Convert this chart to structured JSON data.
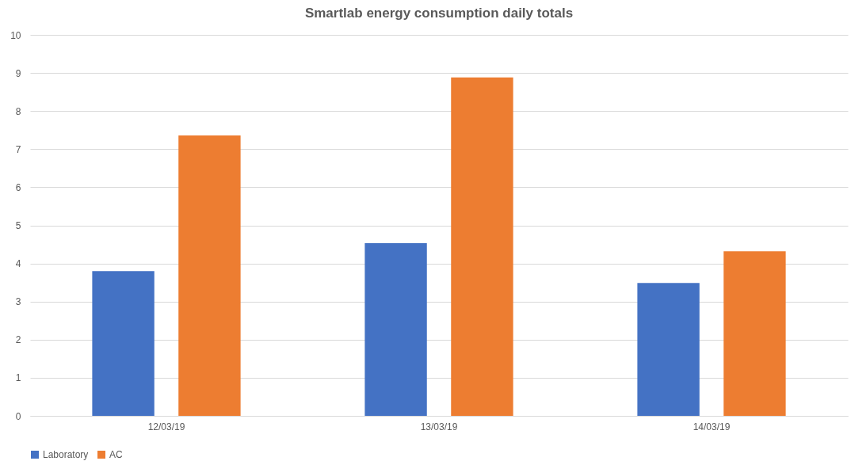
{
  "chart_data": {
    "type": "bar",
    "title": "Smartlab energy consumption daily totals",
    "categories": [
      "12/03/19",
      "13/03/19",
      "14/03/19"
    ],
    "series": [
      {
        "name": "Laboratory",
        "color": "#4472c4",
        "values": [
          3.8,
          4.53,
          3.49
        ]
      },
      {
        "name": "AC",
        "color": "#ed7d31",
        "values": [
          7.36,
          8.88,
          4.32
        ]
      }
    ],
    "ylim": [
      0,
      10
    ],
    "yticks": [
      0,
      1,
      2,
      3,
      4,
      5,
      6,
      7,
      8,
      9,
      10
    ],
    "grid": "y",
    "legend": "bottom"
  }
}
